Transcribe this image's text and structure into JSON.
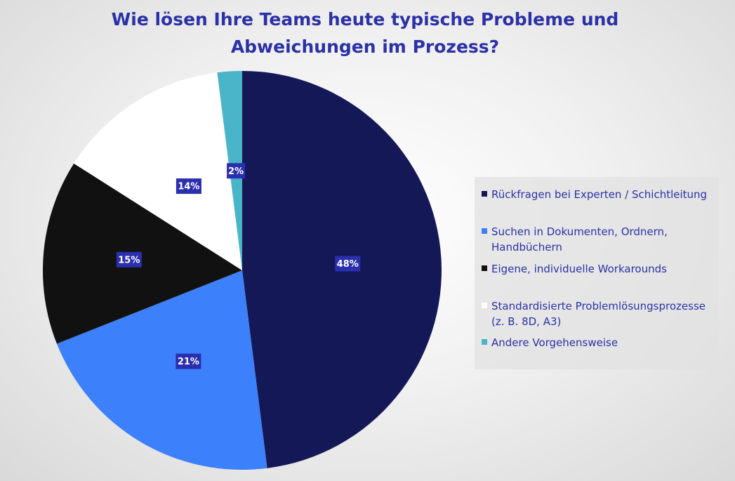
{
  "chart_data": {
    "type": "pie",
    "title": "Wie lösen Ihre Teams heute typische Probleme und Abweichungen im Prozess?",
    "title_lines": [
      "Wie lösen Ihre Teams heute typische Probleme und",
      "Abweichungen im Prozess?"
    ],
    "slices": [
      {
        "label": "Rückfragen bei Experten / Schichtleitung",
        "value": 48,
        "display": "48%",
        "color": "#151857"
      },
      {
        "label": "Suchen in Dokumenten, Ordnern, Handbüchern",
        "value": 21,
        "display": "21%",
        "color": "#3d80fb"
      },
      {
        "label": "Eigene, individuelle Workarounds",
        "value": 15,
        "display": "15%",
        "color": "#111111"
      },
      {
        "label": "Standardisierte Problemlösungsprozesse (z. B. 8D, A3)",
        "value": 14,
        "display": "14%",
        "color": "#ffffff"
      },
      {
        "label": "Andere Vorgehensweise",
        "value": 2,
        "display": "2%",
        "color": "#4ab5c9"
      }
    ],
    "legend_position": "right",
    "data_label_color": "#2b2fad",
    "title_color": "#2b31a6"
  }
}
